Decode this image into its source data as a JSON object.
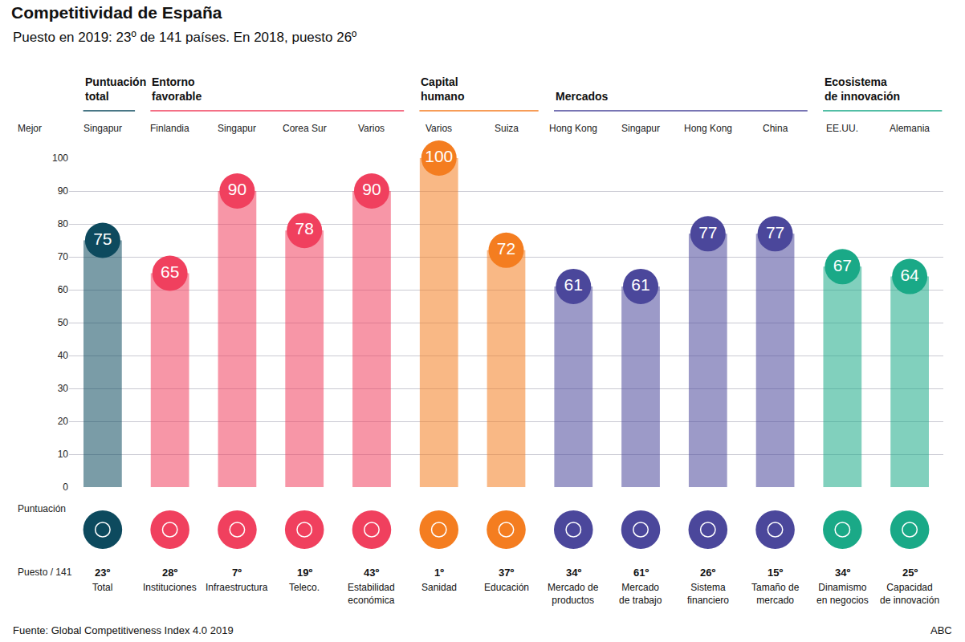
{
  "chart_data": {
    "type": "bar",
    "title": "Competitividad de España",
    "subtitle": "Puesto en 2019: 23º de 141 países. En 2018, puesto 26º",
    "categories": [
      "Total",
      "Instituciones",
      "Infraestructura",
      "Teleco.",
      "Estabilidad\neconómica",
      "Sanidad",
      "Educación",
      "Mercado de\nproductos",
      "Mercado\nde trabajo",
      "Sistema\nfinanciero",
      "Tamaño de\nmercado",
      "Dinamismo\nen negocios",
      "Capacidad\nde innovación"
    ],
    "values": [
      75,
      65,
      90,
      78,
      90,
      100,
      72,
      61,
      61,
      77,
      77,
      67,
      64
    ],
    "colors": [
      "#0d4a5e",
      "#f0405e",
      "#f0405e",
      "#f0405e",
      "#f0405e",
      "#f47d20",
      "#f47d20",
      "#4b479b",
      "#4b479b",
      "#4b479b",
      "#4b479b",
      "#1aa987",
      "#1aa987"
    ],
    "ylim": [
      0,
      100
    ],
    "yticks": [
      0,
      10,
      20,
      30,
      40,
      50,
      60,
      70,
      80,
      90,
      100
    ],
    "grid": true,
    "data_labels": true,
    "tick_labels": "y",
    "best_label": "Mejor",
    "best": [
      "Singapur",
      "Finlandia",
      "Singapur",
      "Corea Sur",
      "Varios",
      "Varios",
      "Suiza",
      "Hong Kong",
      "Singapur",
      "Hong Kong",
      "China",
      "EE.UU.",
      "Alemania"
    ],
    "score_label": "Puntuación",
    "rank_label": "Puesto / 141",
    "ranks": [
      "23º",
      "28º",
      "7º",
      "19º",
      "43º",
      "1º",
      "37º",
      "34º",
      "61º",
      "26º",
      "15º",
      "34º",
      "25º"
    ],
    "groups": [
      {
        "name": "Puntuación\ntotal",
        "count": 1,
        "color": "#0d4a5e"
      },
      {
        "name": "Entorno\nfavorable",
        "count": 4,
        "color": "#f0405e"
      },
      {
        "name": "Capital\nhumano",
        "count": 2,
        "color": "#f47d20"
      },
      {
        "name": "Mercados",
        "count": 4,
        "color": "#4b479b"
      },
      {
        "name": "Ecosistema\nde innovación",
        "count": 2,
        "color": "#1aa987"
      }
    ],
    "source": "Fuente: Global Competitiveness Index 4.0 2019",
    "credit": "ABC"
  }
}
